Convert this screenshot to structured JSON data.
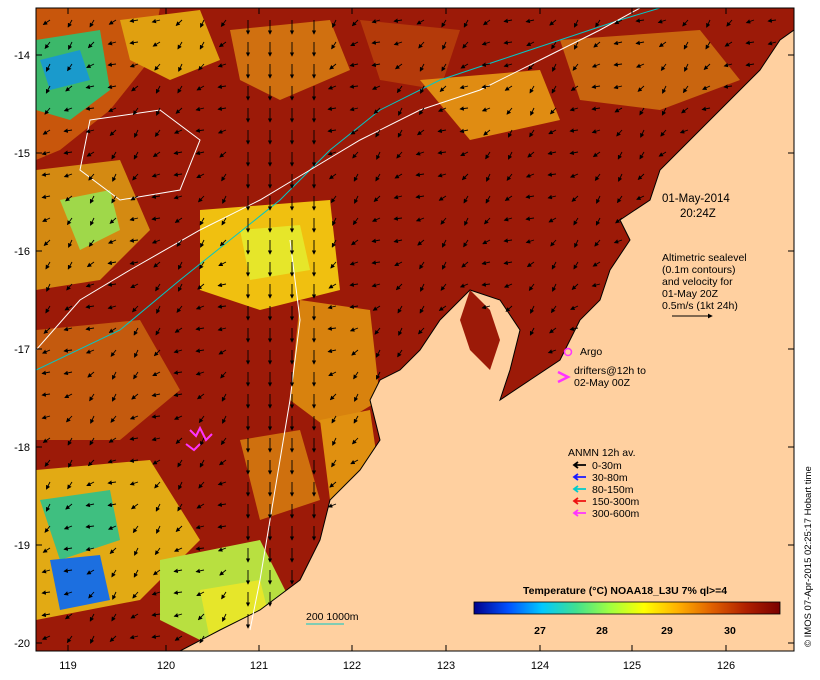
{
  "map": {
    "date_line1": "01-May-2014",
    "date_line2": "20:24Z",
    "lat_ticks": [
      "-14",
      "-15",
      "-16",
      "-17",
      "-18",
      "-19",
      "-20"
    ],
    "lon_ticks": [
      "119",
      "120",
      "121",
      "122",
      "123",
      "124",
      "125",
      "126"
    ],
    "sealevel_note": [
      "Altimetric sealevel",
      "(0.1m contours)",
      "and velocity for",
      "01-May 20Z",
      "0.5m/s (1kt 24h)"
    ],
    "argo_label": "Argo",
    "drifters_label": [
      "drifters@12h to",
      "02-May 00Z"
    ],
    "anmn_title": "ANMN 12h av.",
    "anmn_legend": [
      {
        "label": "0-30m",
        "color": "#000000"
      },
      {
        "label": "30-80m",
        "color": "#1a1aff"
      },
      {
        "label": "80-150m",
        "color": "#00cccc"
      },
      {
        "label": "150-300m",
        "color": "#ee1111"
      },
      {
        "label": "300-600m",
        "color": "#ff33ff"
      }
    ],
    "isobath_label": "200  1000m",
    "colorbar": {
      "title": "Temperature (°C) NOAA18_L3U 7% ql>=4",
      "ticks": [
        "27",
        "28",
        "29",
        "30"
      ],
      "colors": [
        "#00008b",
        "#0050ff",
        "#00c8ff",
        "#40e090",
        "#a0ff40",
        "#ffff00",
        "#ffb000",
        "#e06000",
        "#b02000",
        "#7a0000"
      ]
    },
    "credit": "© IMOS 07-Apr-2015 02:25:17 Hobart time"
  }
}
